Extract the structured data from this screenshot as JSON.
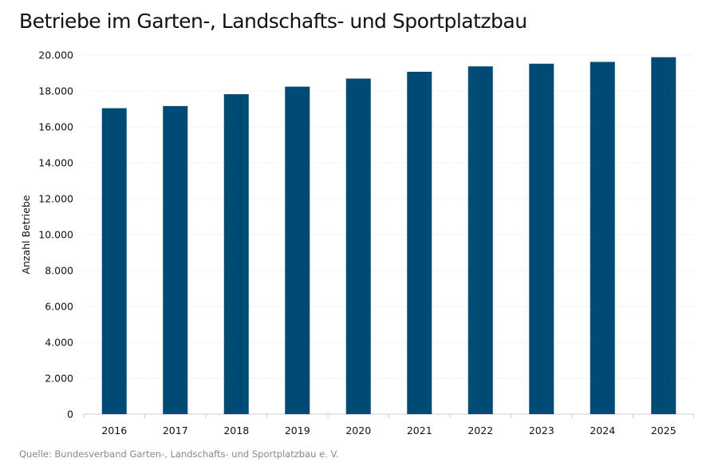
{
  "chart_data": {
    "type": "bar",
    "title": "Betriebe im Garten-, Landschafts- und Sportplatzbau",
    "ylabel": "Anzahl Betriebe",
    "xlabel": "",
    "categories": [
      "2016",
      "2017",
      "2018",
      "2019",
      "2020",
      "2021",
      "2022",
      "2023",
      "2024",
      "2025"
    ],
    "values": [
      17040,
      17160,
      17820,
      18240,
      18690,
      19070,
      19370,
      19520,
      19620,
      19880
    ],
    "ylim": [
      0,
      20000
    ],
    "yticks": [
      "0",
      "2.000",
      "4.000",
      "6.000",
      "8.000",
      "10.000",
      "12.000",
      "14.000",
      "16.000",
      "18.000",
      "20.000"
    ],
    "grid": true,
    "bar_color": "#004b76",
    "source": "Quelle: Bundesverband Garten-, Landschafts- und Sportplatzbau e. V."
  }
}
